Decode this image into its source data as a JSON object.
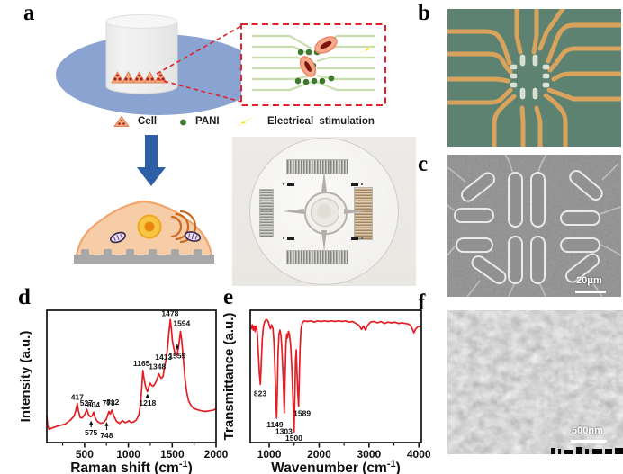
{
  "panels": {
    "a": {
      "label": "a"
    },
    "b": {
      "label": "b"
    },
    "c": {
      "label": "c",
      "scale_bar": "20μm"
    },
    "d": {
      "label": "d"
    },
    "e": {
      "label": "e"
    },
    "f": {
      "label": "f",
      "scale_bar": "500nm"
    }
  },
  "legend": {
    "cell": "Cell",
    "pani": "PANI",
    "stim": "Electrical  stimulation"
  },
  "colors": {
    "spectrum_red": "#e31e25",
    "dish_blue": "#8ba3d1",
    "arrow_blue": "#2e5ea6",
    "pani_green": "#3c7a2d",
    "trace_orange": "#d9a35c",
    "micrograph_green": "#5e8272",
    "lightning_yellow": "#f3ea15",
    "cell_orange": "#f2a97e"
  },
  "chart_data": [
    {
      "panel": "d",
      "type": "line",
      "color": "#e31e25",
      "xlabel": [
        "Raman shift (cm",
        "-1",
        ")"
      ],
      "ylabel": "Intensity (a.u.)",
      "xlim": [
        70,
        2000
      ],
      "xticks": [
        500,
        1000,
        1500,
        2000
      ],
      "minor_ticks": [
        250,
        750,
        1250,
        1750
      ],
      "points": [
        [
          70,
          0.2
        ],
        [
          80,
          0.13
        ],
        [
          95,
          0.1
        ],
        [
          130,
          0.11
        ],
        [
          200,
          0.125
        ],
        [
          280,
          0.14
        ],
        [
          340,
          0.17
        ],
        [
          380,
          0.2
        ],
        [
          400,
          0.24
        ],
        [
          417,
          0.295
        ],
        [
          430,
          0.24
        ],
        [
          450,
          0.19
        ],
        [
          470,
          0.185
        ],
        [
          500,
          0.21
        ],
        [
          527,
          0.25
        ],
        [
          545,
          0.21
        ],
        [
          565,
          0.195
        ],
        [
          585,
          0.2
        ],
        [
          604,
          0.23
        ],
        [
          620,
          0.19
        ],
        [
          645,
          0.16
        ],
        [
          680,
          0.145
        ],
        [
          715,
          0.15
        ],
        [
          748,
          0.175
        ],
        [
          765,
          0.21
        ],
        [
          778,
          0.235
        ],
        [
          793,
          0.215
        ],
        [
          812,
          0.245
        ],
        [
          835,
          0.2
        ],
        [
          865,
          0.16
        ],
        [
          900,
          0.145
        ],
        [
          935,
          0.165
        ],
        [
          960,
          0.15
        ],
        [
          985,
          0.155
        ],
        [
          1005,
          0.165
        ],
        [
          1030,
          0.15
        ],
        [
          1060,
          0.155
        ],
        [
          1090,
          0.17
        ],
        [
          1120,
          0.21
        ],
        [
          1140,
          0.3
        ],
        [
          1155,
          0.44
        ],
        [
          1165,
          0.545
        ],
        [
          1175,
          0.5
        ],
        [
          1190,
          0.44
        ],
        [
          1205,
          0.4
        ],
        [
          1218,
          0.385
        ],
        [
          1232,
          0.42
        ],
        [
          1248,
          0.45
        ],
        [
          1262,
          0.435
        ],
        [
          1278,
          0.425
        ],
        [
          1295,
          0.435
        ],
        [
          1315,
          0.46
        ],
        [
          1332,
          0.49
        ],
        [
          1348,
          0.52
        ],
        [
          1360,
          0.5
        ],
        [
          1375,
          0.485
        ],
        [
          1395,
          0.5
        ],
        [
          1413,
          0.575
        ],
        [
          1430,
          0.63
        ],
        [
          1448,
          0.72
        ],
        [
          1462,
          0.83
        ],
        [
          1478,
          0.93
        ],
        [
          1490,
          0.86
        ],
        [
          1502,
          0.77
        ],
        [
          1515,
          0.72
        ],
        [
          1530,
          0.68
        ],
        [
          1545,
          0.655
        ],
        [
          1558,
          0.67
        ],
        [
          1572,
          0.72
        ],
        [
          1585,
          0.79
        ],
        [
          1594,
          0.84
        ],
        [
          1605,
          0.79
        ],
        [
          1618,
          0.7
        ],
        [
          1632,
          0.59
        ],
        [
          1648,
          0.47
        ],
        [
          1665,
          0.38
        ],
        [
          1685,
          0.32
        ],
        [
          1710,
          0.285
        ],
        [
          1740,
          0.26
        ],
        [
          1780,
          0.25
        ],
        [
          1830,
          0.24
        ],
        [
          1880,
          0.235
        ],
        [
          1930,
          0.24
        ],
        [
          1970,
          0.245
        ],
        [
          2000,
          0.255
        ]
      ],
      "annotations": [
        {
          "x": 417,
          "text": "417",
          "ty": 0.345
        },
        {
          "x": 520,
          "text": "527",
          "ty": 0.3
        },
        {
          "x": 603,
          "text": "604",
          "ty": 0.285
        },
        {
          "x": 575,
          "text": "575",
          "ty": 0.075,
          "arrow": [
            0.115,
            0.165
          ]
        },
        {
          "x": 752,
          "text": "748",
          "ty": 0.055,
          "arrow": [
            0.095,
            0.155
          ]
        },
        {
          "x": 775,
          "text": "778",
          "ty": 0.3
        },
        {
          "x": 822,
          "text": "812",
          "ty": 0.305
        },
        {
          "x": 1150,
          "text": "1165",
          "ty": 0.6
        },
        {
          "x": 1218,
          "text": "1218",
          "ty": 0.3,
          "arrow": [
            0.335,
            0.37
          ]
        },
        {
          "x": 1330,
          "text": "1348",
          "ty": 0.575
        },
        {
          "x": 1402,
          "text": "1413",
          "ty": 0.645
        },
        {
          "x": 1475,
          "text": "1478",
          "ty": 0.975
        },
        {
          "x": 1557,
          "text": "1559",
          "ty": 0.655,
          "arrow": [
            0.745,
            0.7
          ]
        },
        {
          "x": 1608,
          "text": "1594",
          "ty": 0.9
        }
      ]
    },
    {
      "panel": "e",
      "type": "line",
      "color": "#e31e25",
      "xlabel": [
        "Wavenumber (cm",
        "-1",
        ")"
      ],
      "ylabel": "Transmittance (a.u.)",
      "xlim": [
        620,
        4050
      ],
      "xticks": [
        1000,
        2000,
        3000,
        4000
      ],
      "minor_ticks": [
        1500,
        2500,
        3500
      ],
      "points": [
        [
          640,
          0.86
        ],
        [
          660,
          0.89
        ],
        [
          680,
          0.85
        ],
        [
          700,
          0.88
        ],
        [
          715,
          0.84
        ],
        [
          730,
          0.88
        ],
        [
          750,
          0.87
        ],
        [
          765,
          0.8
        ],
        [
          785,
          0.66
        ],
        [
          805,
          0.52
        ],
        [
          823,
          0.44
        ],
        [
          840,
          0.6
        ],
        [
          860,
          0.78
        ],
        [
          885,
          0.88
        ],
        [
          915,
          0.92
        ],
        [
          945,
          0.93
        ],
        [
          975,
          0.92
        ],
        [
          1000,
          0.89
        ],
        [
          1025,
          0.86
        ],
        [
          1050,
          0.89
        ],
        [
          1075,
          0.86
        ],
        [
          1095,
          0.76
        ],
        [
          1115,
          0.56
        ],
        [
          1135,
          0.32
        ],
        [
          1149,
          0.185
        ],
        [
          1162,
          0.38
        ],
        [
          1178,
          0.68
        ],
        [
          1195,
          0.82
        ],
        [
          1215,
          0.85
        ],
        [
          1235,
          0.81
        ],
        [
          1258,
          0.68
        ],
        [
          1280,
          0.48
        ],
        [
          1303,
          0.225
        ],
        [
          1318,
          0.5
        ],
        [
          1335,
          0.74
        ],
        [
          1352,
          0.82
        ],
        [
          1368,
          0.79
        ],
        [
          1385,
          0.84
        ],
        [
          1405,
          0.82
        ],
        [
          1428,
          0.74
        ],
        [
          1452,
          0.57
        ],
        [
          1475,
          0.33
        ],
        [
          1500,
          0.08
        ],
        [
          1515,
          0.38
        ],
        [
          1528,
          0.62
        ],
        [
          1542,
          0.7
        ],
        [
          1556,
          0.55
        ],
        [
          1572,
          0.38
        ],
        [
          1589,
          0.275
        ],
        [
          1602,
          0.48
        ],
        [
          1618,
          0.72
        ],
        [
          1638,
          0.86
        ],
        [
          1665,
          0.905
        ],
        [
          1700,
          0.92
        ],
        [
          1760,
          0.915
        ],
        [
          1830,
          0.92
        ],
        [
          1900,
          0.91
        ],
        [
          1970,
          0.92
        ],
        [
          2040,
          0.915
        ],
        [
          2110,
          0.92
        ],
        [
          2180,
          0.915
        ],
        [
          2250,
          0.92
        ],
        [
          2320,
          0.915
        ],
        [
          2390,
          0.92
        ],
        [
          2460,
          0.915
        ],
        [
          2530,
          0.92
        ],
        [
          2600,
          0.91
        ],
        [
          2670,
          0.915
        ],
        [
          2740,
          0.9
        ],
        [
          2800,
          0.885
        ],
        [
          2850,
          0.855
        ],
        [
          2890,
          0.88
        ],
        [
          2930,
          0.85
        ],
        [
          2970,
          0.885
        ],
        [
          3030,
          0.91
        ],
        [
          3100,
          0.915
        ],
        [
          3170,
          0.905
        ],
        [
          3240,
          0.915
        ],
        [
          3310,
          0.9
        ],
        [
          3380,
          0.91
        ],
        [
          3450,
          0.905
        ],
        [
          3520,
          0.91
        ],
        [
          3590,
          0.9
        ],
        [
          3660,
          0.905
        ],
        [
          3730,
          0.9
        ],
        [
          3800,
          0.895
        ],
        [
          3850,
          0.875
        ],
        [
          3900,
          0.83
        ],
        [
          3940,
          0.86
        ],
        [
          3980,
          0.875
        ],
        [
          4050,
          0.88
        ]
      ],
      "annotations": [
        {
          "x": 818,
          "text": "823",
          "ty": 0.37
        },
        {
          "x": 1115,
          "text": "1149",
          "ty": 0.135
        },
        {
          "x": 1295,
          "text": "1303",
          "ty": 0.085
        },
        {
          "x": 1495,
          "text": "1500",
          "ty": 0.035
        },
        {
          "x": 1660,
          "text": "1589",
          "ty": 0.22
        }
      ]
    }
  ]
}
